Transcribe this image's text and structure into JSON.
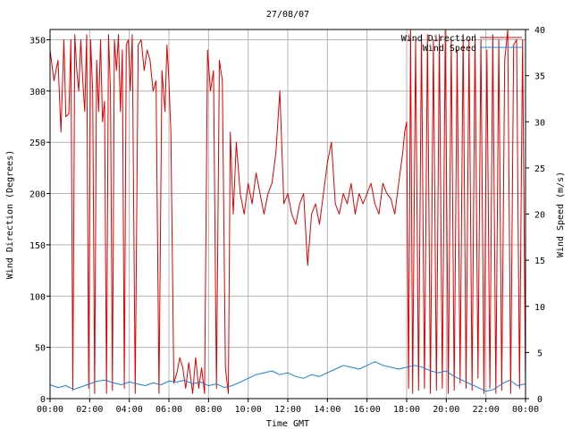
{
  "chart_data": {
    "type": "line",
    "title": "27/08/07",
    "xlabel": "Time GMT",
    "ylabel_left": "Wind Direction (Degrees)",
    "ylabel_right": "Wind Speed (m/s)",
    "x_ticks": [
      "00:00",
      "02:00",
      "04:00",
      "06:00",
      "08:00",
      "10:00",
      "12:00",
      "14:00",
      "16:00",
      "18:00",
      "20:00",
      "22:00",
      "00:00"
    ],
    "x_range_hours": [
      0,
      24
    ],
    "y_left_range": [
      0,
      360
    ],
    "y_left_ticks": [
      "0",
      "50",
      "100",
      "150",
      "200",
      "250",
      "300",
      "350"
    ],
    "y_right_range": [
      0,
      40
    ],
    "y_right_ticks": [
      "0",
      "5",
      "10",
      "15",
      "20",
      "25",
      "30",
      "35",
      "40"
    ],
    "grid": true,
    "legend_position": "top-right",
    "series": [
      {
        "name": "Wind Direction",
        "axis": "left",
        "color": "#dd0000",
        "x": [
          0,
          0.2,
          0.4,
          0.55,
          0.7,
          0.8,
          0.95,
          1.05,
          1.15,
          1.25,
          1.35,
          1.45,
          1.55,
          1.65,
          1.75,
          1.85,
          1.95,
          2.05,
          2.15,
          2.25,
          2.35,
          2.45,
          2.55,
          2.65,
          2.75,
          2.85,
          2.95,
          3.05,
          3.15,
          3.25,
          3.35,
          3.45,
          3.55,
          3.65,
          3.75,
          3.85,
          3.95,
          4.05,
          4.15,
          4.3,
          4.45,
          4.6,
          4.75,
          4.9,
          5.05,
          5.2,
          5.35,
          5.5,
          5.65,
          5.8,
          5.9,
          6.0,
          6.1,
          6.25,
          6.4,
          6.55,
          6.7,
          6.85,
          7.0,
          7.2,
          7.35,
          7.5,
          7.65,
          7.8,
          7.95,
          8.1,
          8.25,
          8.4,
          8.55,
          8.7,
          8.85,
          9.0,
          9.1,
          9.25,
          9.4,
          9.6,
          9.8,
          10.0,
          10.2,
          10.4,
          10.6,
          10.8,
          11.0,
          11.2,
          11.4,
          11.6,
          11.8,
          12.0,
          12.2,
          12.4,
          12.6,
          12.8,
          13.0,
          13.2,
          13.4,
          13.6,
          13.8,
          14.0,
          14.2,
          14.4,
          14.6,
          14.8,
          15.0,
          15.2,
          15.4,
          15.6,
          15.8,
          16.0,
          16.2,
          16.4,
          16.6,
          16.8,
          17.0,
          17.2,
          17.4,
          17.6,
          17.8,
          17.9,
          18.0,
          18.1,
          18.2,
          18.3,
          18.45,
          18.6,
          18.75,
          18.9,
          19.05,
          19.2,
          19.35,
          19.5,
          19.65,
          19.8,
          19.95,
          20.1,
          20.25,
          20.4,
          20.55,
          20.7,
          20.85,
          21.0,
          21.15,
          21.3,
          21.45,
          21.6,
          21.75,
          21.9,
          22.05,
          22.2,
          22.35,
          22.5,
          22.65,
          22.8,
          22.95,
          23.1,
          23.25,
          23.4,
          23.55,
          23.7,
          23.85,
          24.0
        ],
        "values": [
          340,
          310,
          330,
          260,
          350,
          275,
          278,
          350,
          8,
          355,
          320,
          300,
          350,
          310,
          280,
          355,
          10,
          350,
          300,
          5,
          330,
          280,
          350,
          270,
          290,
          5,
          355,
          300,
          8,
          350,
          320,
          355,
          280,
          340,
          10,
          345,
          350,
          300,
          355,
          5,
          345,
          350,
          320,
          340,
          330,
          300,
          310,
          5,
          320,
          280,
          345,
          310,
          260,
          15,
          25,
          40,
          30,
          10,
          35,
          5,
          40,
          10,
          30,
          5,
          340,
          300,
          320,
          10,
          330,
          310,
          30,
          5,
          260,
          180,
          250,
          200,
          180,
          210,
          190,
          220,
          200,
          180,
          200,
          210,
          240,
          300,
          190,
          200,
          180,
          170,
          190,
          200,
          130,
          180,
          190,
          170,
          200,
          230,
          250,
          190,
          180,
          200,
          190,
          210,
          180,
          200,
          190,
          200,
          210,
          190,
          180,
          210,
          200,
          195,
          180,
          210,
          240,
          260,
          270,
          10,
          360,
          5,
          350,
          8,
          355,
          10,
          355,
          5,
          350,
          8,
          355,
          10,
          360,
          5,
          350,
          8,
          340,
          15,
          355,
          10,
          350,
          8,
          355,
          20,
          350,
          5,
          340,
          10,
          355,
          5,
          350,
          8,
          330,
          360,
          5,
          345,
          350,
          10,
          350,
          8
        ]
      },
      {
        "name": "Wind Speed",
        "axis": "right",
        "color": "#1a7fd4",
        "x": [
          0,
          0.4,
          0.8,
          1.2,
          1.6,
          2.0,
          2.4,
          2.8,
          3.2,
          3.6,
          4.0,
          4.4,
          4.8,
          5.2,
          5.6,
          6.0,
          6.4,
          6.8,
          7.2,
          7.6,
          8.0,
          8.4,
          8.8,
          9.2,
          9.6,
          10.0,
          10.4,
          10.8,
          11.2,
          11.6,
          12.0,
          12.4,
          12.8,
          13.2,
          13.6,
          14.0,
          14.4,
          14.8,
          15.2,
          15.6,
          16.0,
          16.4,
          16.8,
          17.2,
          17.6,
          18.0,
          18.4,
          18.8,
          19.2,
          19.6,
          20.0,
          20.4,
          20.8,
          21.2,
          21.6,
          22.0,
          22.4,
          22.8,
          23.2,
          23.6,
          24.0
        ],
        "values": [
          1.5,
          1.2,
          1.4,
          1.0,
          1.3,
          1.6,
          1.9,
          2.0,
          1.7,
          1.5,
          1.8,
          1.6,
          1.4,
          1.7,
          1.5,
          1.9,
          1.8,
          2.0,
          1.6,
          1.8,
          1.4,
          1.6,
          1.2,
          1.4,
          1.8,
          2.2,
          2.6,
          2.8,
          3.0,
          2.6,
          2.8,
          2.4,
          2.2,
          2.6,
          2.4,
          2.8,
          3.2,
          3.6,
          3.4,
          3.2,
          3.6,
          4.0,
          3.6,
          3.4,
          3.2,
          3.4,
          3.6,
          3.4,
          3.0,
          2.8,
          3.0,
          2.4,
          2.0,
          1.6,
          1.2,
          0.8,
          1.0,
          1.6,
          2.0,
          1.4,
          1.6
        ]
      }
    ]
  }
}
